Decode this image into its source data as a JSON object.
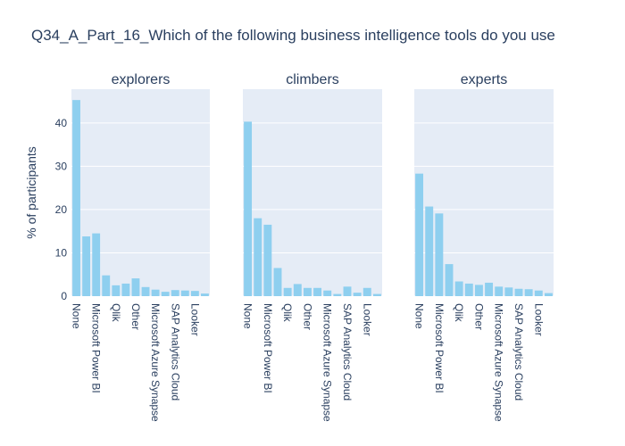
{
  "chart_data": {
    "title": "Q34_A_Part_16_Which of the following business intelligence tools do you use",
    "y_label": "% of participants",
    "subplots": [
      {
        "type": "bar",
        "title": "explorers",
        "color": "#8ecfef",
        "categories": [
          "None",
          null,
          "Microsoft Power BI",
          null,
          "Qlik",
          null,
          "Other",
          null,
          "Microsoft Azure Synapse",
          null,
          "SAP Analytics Cloud",
          null,
          "Looker",
          null
        ],
        "values": [
          45.3,
          13.8,
          14.5,
          4.8,
          2.5,
          2.9,
          4.1,
          2.1,
          1.5,
          1.0,
          1.4,
          1.3,
          1.2,
          0.6
        ],
        "ylim": [
          0,
          47.8
        ],
        "yticks": [
          0,
          10,
          20,
          30,
          40
        ],
        "grid": true
      },
      {
        "type": "bar",
        "title": "climbers",
        "color": "#8ecfef",
        "categories": [
          "None",
          null,
          "Microsoft Power BI",
          null,
          "Qlik",
          null,
          "Other",
          null,
          "Microsoft Azure Synapse",
          null,
          "SAP Analytics Cloud",
          null,
          "Looker",
          null
        ],
        "values": [
          40.3,
          18.0,
          16.5,
          6.5,
          1.9,
          2.8,
          1.9,
          1.9,
          1.3,
          0.5,
          2.2,
          0.8,
          1.9,
          0.5
        ],
        "ylim": [
          0,
          47.8
        ],
        "yticks": [
          0,
          10,
          20,
          30,
          40
        ],
        "grid": true
      },
      {
        "type": "bar",
        "title": "experts",
        "color": "#8ecfef",
        "categories": [
          "None",
          null,
          "Microsoft Power BI",
          null,
          "Qlik",
          null,
          "Other",
          null,
          "Microsoft Azure Synapse",
          null,
          "SAP Analytics Cloud",
          null,
          "Looker",
          null
        ],
        "values": [
          28.3,
          20.7,
          19.1,
          7.4,
          3.4,
          2.9,
          2.6,
          3.1,
          2.2,
          2.0,
          1.7,
          1.6,
          1.3,
          0.7
        ],
        "ylim": [
          0,
          47.8
        ],
        "yticks": [
          0,
          10,
          20,
          30,
          40
        ],
        "grid": true
      }
    ]
  }
}
